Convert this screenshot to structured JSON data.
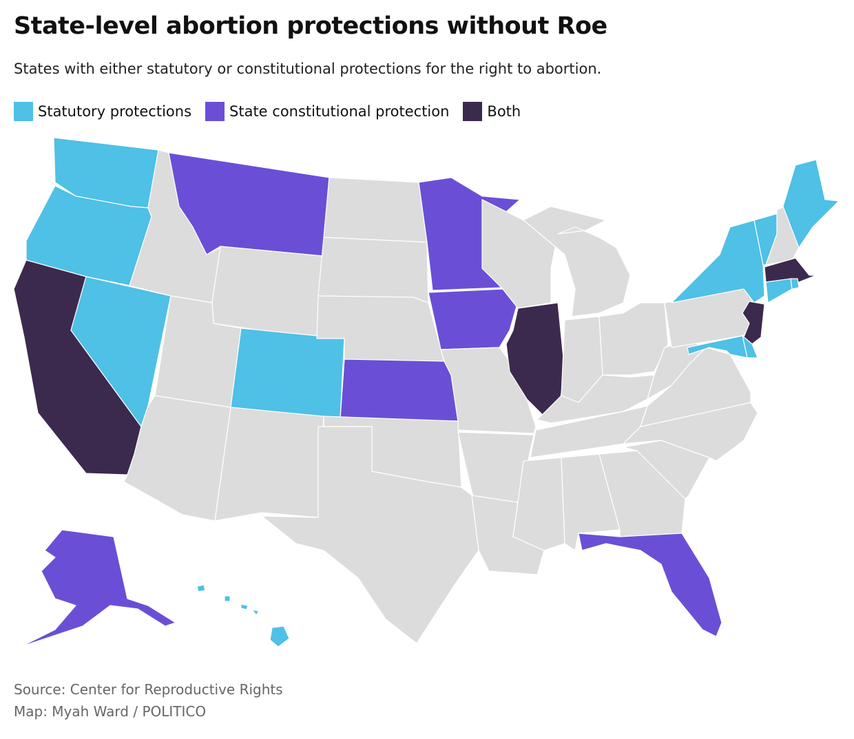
{
  "title": "State-level abortion protections without Roe",
  "subtitle": "States with either statutory or constitutional protections for the right to abortion.",
  "legend": [
    {
      "label": "Statutory protections",
      "color": "#4fc0e6",
      "key": "statutory"
    },
    {
      "label": "State constitutional protection",
      "color": "#6a4fd6",
      "key": "constitutional"
    },
    {
      "label": "Both",
      "color": "#3b2a4d",
      "key": "both"
    }
  ],
  "no_protection_color": "#dcdcdc",
  "states": {
    "statutory": [
      "WA",
      "OR",
      "NV",
      "CO",
      "ME",
      "VT",
      "NY",
      "CT",
      "RI",
      "MD",
      "DE",
      "HI"
    ],
    "constitutional": [
      "MT",
      "MN",
      "IA",
      "KS",
      "FL",
      "AK"
    ],
    "both": [
      "CA",
      "IL",
      "NJ",
      "MA"
    ]
  },
  "source": "Source: Center for Reproductive Rights",
  "credit": "Map: Myah Ward / POLITICO"
}
